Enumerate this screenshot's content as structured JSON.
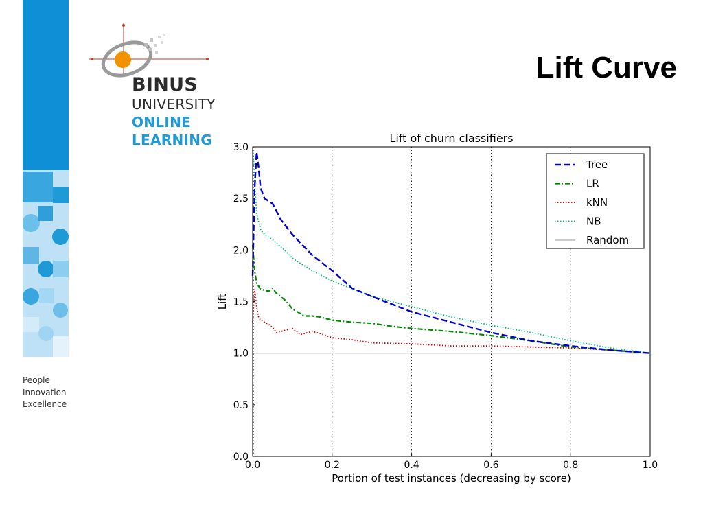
{
  "slide": {
    "title": "Lift Curve",
    "tagline": [
      "People",
      "Innovation",
      "Excellence"
    ]
  },
  "logo": {
    "line1": "BINUS",
    "line2": "UNIVERSITY",
    "line3": "ONLINE",
    "line4": "LEARNING",
    "colors": {
      "orange": "#f39200",
      "blue": "#1e9bd7",
      "dark": "#2b2b2b"
    }
  },
  "colors": {
    "sidebar_blue": "#0f8fd6",
    "sidebar_light": "#bfe1f5"
  },
  "chart_data": {
    "type": "line",
    "title": "Lift of churn classifiers",
    "xlabel": "Portion of test instances (decreasing by score)",
    "ylabel": "Lift",
    "xlim": [
      0.0,
      1.0
    ],
    "ylim": [
      0.0,
      3.0
    ],
    "xticks": [
      "0.0",
      "0.2",
      "0.4",
      "0.6",
      "0.8",
      "1.0"
    ],
    "yticks": [
      "0.0",
      "0.5",
      "1.0",
      "1.5",
      "2.0",
      "2.5",
      "3.0"
    ],
    "grid": "vertical dotted",
    "legend_position": "top-right",
    "series": [
      {
        "name": "Tree",
        "color": "#0000cc",
        "style": "dashed",
        "x": [
          0.0,
          0.005,
          0.01,
          0.015,
          0.02,
          0.03,
          0.05,
          0.07,
          0.1,
          0.15,
          0.2,
          0.25,
          0.3,
          0.4,
          0.5,
          0.6,
          0.7,
          0.8,
          0.9,
          1.0
        ],
        "y": [
          1.75,
          2.6,
          2.95,
          2.8,
          2.6,
          2.5,
          2.45,
          2.3,
          2.15,
          1.95,
          1.8,
          1.63,
          1.55,
          1.4,
          1.3,
          1.2,
          1.12,
          1.07,
          1.03,
          1.0
        ]
      },
      {
        "name": "LR",
        "color": "#008800",
        "style": "dashdot",
        "x": [
          0.0,
          0.005,
          0.01,
          0.02,
          0.04,
          0.05,
          0.06,
          0.08,
          0.1,
          0.13,
          0.15,
          0.17,
          0.2,
          0.25,
          0.3,
          0.35,
          0.4,
          0.5,
          0.6,
          0.7,
          0.8,
          0.9,
          1.0
        ],
        "y": [
          2.05,
          1.8,
          1.68,
          1.62,
          1.6,
          1.63,
          1.58,
          1.52,
          1.43,
          1.36,
          1.36,
          1.35,
          1.32,
          1.3,
          1.29,
          1.26,
          1.24,
          1.21,
          1.17,
          1.12,
          1.06,
          1.03,
          1.0
        ]
      },
      {
        "name": "kNN",
        "color": "#cc0000",
        "style": "dotted",
        "x": [
          0.0,
          0.005,
          0.01,
          0.015,
          0.02,
          0.04,
          0.05,
          0.06,
          0.08,
          0.1,
          0.12,
          0.15,
          0.17,
          0.2,
          0.25,
          0.3,
          0.4,
          0.5,
          0.6,
          0.7,
          0.8,
          0.9,
          1.0
        ],
        "y": [
          1.3,
          1.62,
          1.45,
          1.35,
          1.32,
          1.28,
          1.25,
          1.2,
          1.22,
          1.24,
          1.18,
          1.21,
          1.19,
          1.15,
          1.13,
          1.1,
          1.09,
          1.07,
          1.07,
          1.06,
          1.05,
          1.03,
          1.0
        ]
      },
      {
        "name": "NB",
        "color": "#00bb88",
        "style": "dotted",
        "x": [
          0.0,
          0.003,
          0.006,
          0.01,
          0.02,
          0.03,
          0.05,
          0.08,
          0.1,
          0.15,
          0.2,
          0.3,
          0.4,
          0.5,
          0.6,
          0.7,
          0.8,
          0.9,
          1.0
        ],
        "y": [
          2.97,
          2.85,
          2.6,
          2.35,
          2.2,
          2.15,
          2.1,
          2.0,
          1.92,
          1.8,
          1.7,
          1.55,
          1.45,
          1.35,
          1.27,
          1.2,
          1.12,
          1.05,
          1.0
        ]
      },
      {
        "name": "Random",
        "color": "#999999",
        "style": "solid",
        "x": [
          0.0,
          1.0
        ],
        "y": [
          1.0,
          1.0
        ]
      }
    ]
  }
}
